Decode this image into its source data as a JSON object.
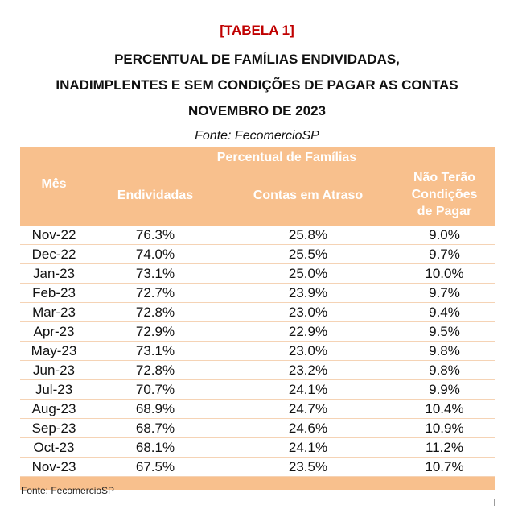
{
  "heading": {
    "tag": "[TABELA 1]",
    "line1": "PERCENTUAL DE FAMÍLIAS ENDIVIDADAS,",
    "line2": "INADIMPLENTES E SEM CONDIÇÕES DE PAGAR AS CONTAS",
    "line3": "NOVEMBRO DE 2023",
    "source": "Fonte: FecomercioSP"
  },
  "table": {
    "month_header": "Mês",
    "group_header": "Percentual de Famílias",
    "columns": [
      "Endividadas",
      "Contas em Atraso",
      "Não Terão Condições de Pagar"
    ],
    "column3_lines": [
      "Não Terão",
      "Condições",
      "de Pagar"
    ],
    "rows": [
      {
        "month": "Nov-22",
        "endividadas": "76.3%",
        "atraso": "25.8%",
        "sem_condicoes": "9.0%"
      },
      {
        "month": "Dec-22",
        "endividadas": "74.0%",
        "atraso": "25.5%",
        "sem_condicoes": "9.7%"
      },
      {
        "month": "Jan-23",
        "endividadas": "73.1%",
        "atraso": "25.0%",
        "sem_condicoes": "10.0%"
      },
      {
        "month": "Feb-23",
        "endividadas": "72.7%",
        "atraso": "23.9%",
        "sem_condicoes": "9.7%"
      },
      {
        "month": "Mar-23",
        "endividadas": "72.8%",
        "atraso": "23.0%",
        "sem_condicoes": "9.4%"
      },
      {
        "month": "Apr-23",
        "endividadas": "72.9%",
        "atraso": "22.9%",
        "sem_condicoes": "9.5%"
      },
      {
        "month": "May-23",
        "endividadas": "73.1%",
        "atraso": "23.0%",
        "sem_condicoes": "9.8%"
      },
      {
        "month": "Jun-23",
        "endividadas": "72.8%",
        "atraso": "23.2%",
        "sem_condicoes": "9.8%"
      },
      {
        "month": "Jul-23",
        "endividadas": "70.7%",
        "atraso": "24.1%",
        "sem_condicoes": "9.9%"
      },
      {
        "month": "Aug-23",
        "endividadas": "68.9%",
        "atraso": "24.7%",
        "sem_condicoes": "10.4%"
      },
      {
        "month": "Sep-23",
        "endividadas": "68.7%",
        "atraso": "24.6%",
        "sem_condicoes": "10.9%"
      },
      {
        "month": "Oct-23",
        "endividadas": "68.1%",
        "atraso": "24.1%",
        "sem_condicoes": "11.2%"
      },
      {
        "month": "Nov-23",
        "endividadas": "67.5%",
        "atraso": "23.5%",
        "sem_condicoes": "10.7%"
      }
    ]
  },
  "footer": {
    "source": "Fonte: FecomercioSP"
  },
  "colors": {
    "tag_red": "#c00000",
    "header_orange": "#f8c08d",
    "header_text": "#ffffff"
  }
}
